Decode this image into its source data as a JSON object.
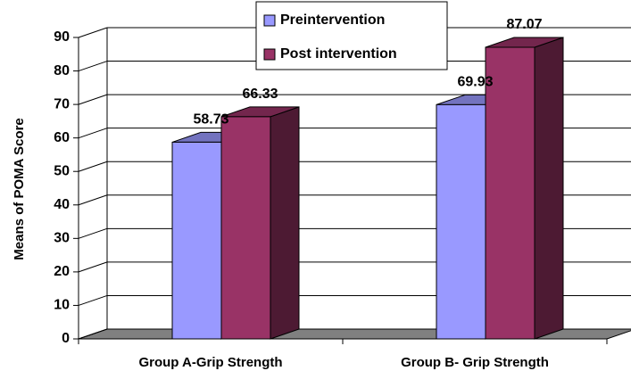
{
  "chart_data": {
    "type": "bar3d",
    "y_label": "Means of POMA Score",
    "categories": [
      "Group A-Grip Strength",
      "Group B- Grip Strength"
    ],
    "series": [
      {
        "name": "Preintervention",
        "color": "#9999ff",
        "values": [
          58.73,
          69.93
        ]
      },
      {
        "name": "Post intervention",
        "color": "#993366",
        "values": [
          66.33,
          87.07
        ]
      }
    ],
    "ylim": [
      0,
      90
    ],
    "yticks": [
      0,
      10,
      20,
      30,
      40,
      50,
      60,
      70,
      80,
      90
    ],
    "grid": true,
    "legend": "top"
  }
}
